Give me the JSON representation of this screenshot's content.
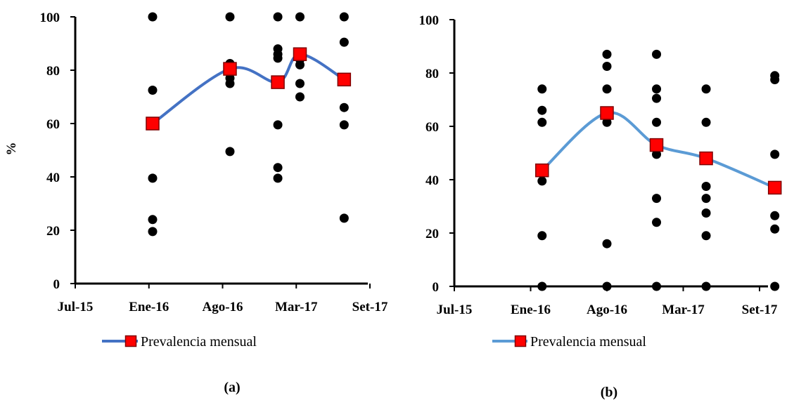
{
  "chart_data": [
    {
      "id": "a",
      "type": "scatter",
      "caption": "(a)",
      "ylabel": "%",
      "ylim": [
        0,
        100
      ],
      "yticks": [
        0,
        20,
        40,
        60,
        80,
        100
      ],
      "xticks": [
        "Jul-15",
        "Ene-16",
        "Ago-16",
        "Mar-17",
        "Set-17"
      ],
      "line_color": "#4472C4",
      "marker_color": "#FF0000",
      "point_color": "#000000",
      "legend": {
        "label": "Prevalencia mensual",
        "placement": "bottom"
      },
      "points": [
        {
          "t": 1.05,
          "v": 100
        },
        {
          "t": 1.05,
          "v": 72.5
        },
        {
          "t": 1.05,
          "v": 59.5
        },
        {
          "t": 1.05,
          "v": 39.5
        },
        {
          "t": 1.05,
          "v": 24
        },
        {
          "t": 1.05,
          "v": 19.5
        },
        {
          "t": 2.1,
          "v": 100
        },
        {
          "t": 2.1,
          "v": 82.5
        },
        {
          "t": 2.1,
          "v": 81
        },
        {
          "t": 2.1,
          "v": 79
        },
        {
          "t": 2.1,
          "v": 77
        },
        {
          "t": 2.1,
          "v": 75
        },
        {
          "t": 2.1,
          "v": 49.5
        },
        {
          "t": 2.75,
          "v": 100
        },
        {
          "t": 2.75,
          "v": 88
        },
        {
          "t": 2.75,
          "v": 86
        },
        {
          "t": 2.75,
          "v": 84.5
        },
        {
          "t": 2.75,
          "v": 59.5
        },
        {
          "t": 2.75,
          "v": 43.5
        },
        {
          "t": 2.75,
          "v": 39.5
        },
        {
          "t": 3.05,
          "v": 100
        },
        {
          "t": 3.05,
          "v": 84
        },
        {
          "t": 3.05,
          "v": 82
        },
        {
          "t": 3.05,
          "v": 75
        },
        {
          "t": 3.05,
          "v": 70
        },
        {
          "t": 3.65,
          "v": 100
        },
        {
          "t": 3.65,
          "v": 90.5
        },
        {
          "t": 3.65,
          "v": 66
        },
        {
          "t": 3.65,
          "v": 59.5
        },
        {
          "t": 3.65,
          "v": 24.5
        }
      ],
      "series": [
        {
          "label": "Prevalencia mensual",
          "points": [
            {
              "t": 1.05,
              "v": 60
            },
            {
              "t": 2.1,
              "v": 80.5
            },
            {
              "t": 2.75,
              "v": 75.5
            },
            {
              "t": 3.05,
              "v": 86
            },
            {
              "t": 3.65,
              "v": 76.5
            }
          ]
        }
      ]
    },
    {
      "id": "b",
      "type": "scatter",
      "caption": "(b)",
      "ylabel": "",
      "ylim": [
        0,
        100
      ],
      "yticks": [
        0,
        20,
        40,
        60,
        80,
        100
      ],
      "xticks": [
        "Jul-15",
        "Ene-16",
        "Ago-16",
        "Mar-17",
        "Set-17"
      ],
      "line_color": "#5B9BD5",
      "marker_color": "#FF0000",
      "point_color": "#000000",
      "legend": {
        "label": "Prevalencia mensual",
        "placement": "bottom"
      },
      "points": [
        {
          "t": 1.15,
          "v": 74
        },
        {
          "t": 1.15,
          "v": 66
        },
        {
          "t": 1.15,
          "v": 61.5
        },
        {
          "t": 1.15,
          "v": 39.5
        },
        {
          "t": 1.15,
          "v": 19
        },
        {
          "t": 1.15,
          "v": 0
        },
        {
          "t": 2.0,
          "v": 87
        },
        {
          "t": 2.0,
          "v": 82.5
        },
        {
          "t": 2.0,
          "v": 74
        },
        {
          "t": 2.0,
          "v": 61.5
        },
        {
          "t": 2.0,
          "v": 16
        },
        {
          "t": 2.0,
          "v": 0
        },
        {
          "t": 2.65,
          "v": 87
        },
        {
          "t": 2.65,
          "v": 74
        },
        {
          "t": 2.65,
          "v": 70.5
        },
        {
          "t": 2.65,
          "v": 61.5
        },
        {
          "t": 2.65,
          "v": 49.5
        },
        {
          "t": 2.65,
          "v": 33
        },
        {
          "t": 2.65,
          "v": 24
        },
        {
          "t": 2.65,
          "v": 0
        },
        {
          "t": 3.3,
          "v": 74
        },
        {
          "t": 3.3,
          "v": 61.5
        },
        {
          "t": 3.3,
          "v": 37.5
        },
        {
          "t": 3.3,
          "v": 33
        },
        {
          "t": 3.3,
          "v": 27.5
        },
        {
          "t": 3.3,
          "v": 19
        },
        {
          "t": 3.3,
          "v": 0
        },
        {
          "t": 4.2,
          "v": 79
        },
        {
          "t": 4.2,
          "v": 77.5
        },
        {
          "t": 4.2,
          "v": 49.5
        },
        {
          "t": 4.2,
          "v": 26.5
        },
        {
          "t": 4.2,
          "v": 21.5
        },
        {
          "t": 4.2,
          "v": 0
        }
      ],
      "series": [
        {
          "label": "Prevalencia mensual",
          "points": [
            {
              "t": 1.15,
              "v": 43.5
            },
            {
              "t": 2.0,
              "v": 65
            },
            {
              "t": 2.65,
              "v": 53
            },
            {
              "t": 3.3,
              "v": 48
            },
            {
              "t": 4.2,
              "v": 37
            }
          ]
        }
      ]
    }
  ]
}
